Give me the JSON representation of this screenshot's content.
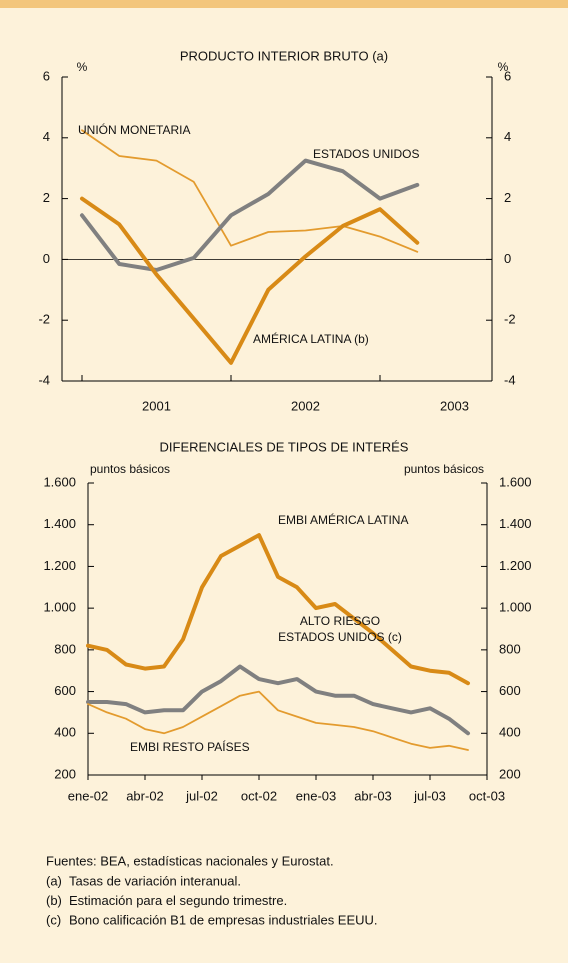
{
  "chart_data": [
    {
      "type": "line",
      "title": "PRODUCTO INTERIOR BRUTO (a)",
      "y_unit": "%",
      "y2_unit": "%",
      "categories": [
        null,
        null,
        null,
        null,
        null,
        null,
        null,
        null,
        null,
        null
      ],
      "x_groups": [
        "2001",
        "2002",
        "2003"
      ],
      "ylim": [
        -4,
        6
      ],
      "yticks": [
        -4,
        -2,
        0,
        2,
        4,
        6
      ],
      "y2lim": [
        -4,
        6
      ],
      "y2ticks": [
        -4,
        -2,
        0,
        2,
        4,
        6
      ],
      "series": [
        {
          "name": "UNIÓN MONETARIA",
          "color": "#e39b2e",
          "width": "thin",
          "values": [
            4.25,
            3.4,
            3.25,
            2.55,
            0.45,
            0.9,
            0.95,
            1.1,
            0.75,
            0.25
          ]
        },
        {
          "name": "ESTADOS UNIDOS",
          "color": "#808080",
          "width": "thick",
          "values": [
            1.45,
            -0.15,
            -0.35,
            0.05,
            1.45,
            2.15,
            3.25,
            2.9,
            2.0,
            2.45
          ]
        },
        {
          "name": "AMÉRICA LATINA (b)",
          "color": "#d88a16",
          "width": "thick",
          "values": [
            2.0,
            1.15,
            -0.5,
            -1.95,
            -3.4,
            -1.0,
            0.1,
            1.1,
            1.65,
            0.55
          ]
        }
      ]
    },
    {
      "type": "line",
      "title": "DIFERENCIALES DE TIPOS DE INTERÉS",
      "y_unit": "puntos básicos",
      "y2_unit": "puntos básicos",
      "x": [
        "2002-01",
        "2002-02",
        "2002-03",
        "2002-04",
        "2002-05",
        "2002-06",
        "2002-07",
        "2002-08",
        "2002-09",
        "2002-10",
        "2002-11",
        "2002-12",
        "2003-01",
        "2003-02",
        "2003-03",
        "2003-04",
        "2003-05",
        "2003-06",
        "2003-07",
        "2003-08",
        "2003-09"
      ],
      "xlim": [
        "2002-01",
        "2003-10"
      ],
      "xticks": [
        {
          "value": "2002-01",
          "label": "ene-02"
        },
        {
          "value": "2002-04",
          "label": "abr-02"
        },
        {
          "value": "2002-07",
          "label": "jul-02"
        },
        {
          "value": "2002-10",
          "label": "oct-02"
        },
        {
          "value": "2003-01",
          "label": "ene-03"
        },
        {
          "value": "2003-04",
          "label": "abr-03"
        },
        {
          "value": "2003-07",
          "label": "jul-03"
        },
        {
          "value": "2003-10",
          "label": "oct-03"
        }
      ],
      "ylim": [
        200,
        1600
      ],
      "yticks": [
        200,
        400,
        600,
        800,
        {
          "value": 1000,
          "label": "1.000"
        },
        {
          "value": 1200,
          "label": "1.200"
        },
        {
          "value": 1400,
          "label": "1.400"
        },
        {
          "value": 1600,
          "label": "1.600"
        }
      ],
      "y2lim": [
        200,
        1600
      ],
      "y2ticks": [
        200,
        400,
        600,
        800,
        {
          "value": 1000,
          "label": "1.000"
        },
        {
          "value": 1200,
          "label": "1.200"
        },
        {
          "value": 1400,
          "label": "1.400"
        },
        {
          "value": 1600,
          "label": "1.600"
        }
      ],
      "series": [
        {
          "name": "EMBI AMÉRICA LATINA",
          "color": "#d88a16",
          "width": "thick",
          "values": [
            820,
            800,
            730,
            710,
            720,
            850,
            1100,
            1250,
            1300,
            1350,
            1150,
            1100,
            1000,
            1020,
            950,
            880,
            800,
            720,
            700,
            690,
            640
          ]
        },
        {
          "name": "ALTO RIESGO\nESTADOS UNIDOS (c)",
          "color": "#808080",
          "width": "thick",
          "values": [
            550,
            550,
            540,
            500,
            510,
            510,
            600,
            650,
            720,
            660,
            640,
            660,
            600,
            580,
            580,
            540,
            520,
            500,
            520,
            470,
            400
          ]
        },
        {
          "name": "EMBI RESTO PAÍSES",
          "color": "#e39b2e",
          "width": "thin",
          "values": [
            540,
            500,
            470,
            420,
            400,
            430,
            480,
            530,
            580,
            600,
            510,
            480,
            450,
            440,
            430,
            410,
            380,
            350,
            330,
            340,
            320
          ]
        }
      ]
    }
  ],
  "footer": {
    "source": "Fuentes: BEA, estadísticas nacionales y Eurostat.",
    "notes": [
      {
        "marker": "(a)",
        "text": "Tasas de variación interanual."
      },
      {
        "marker": "(b)",
        "text": "Estimación para el segundo trimestre."
      },
      {
        "marker": "(c)",
        "text": "Bono calificación B1 de empresas industriales EEUU."
      }
    ]
  }
}
